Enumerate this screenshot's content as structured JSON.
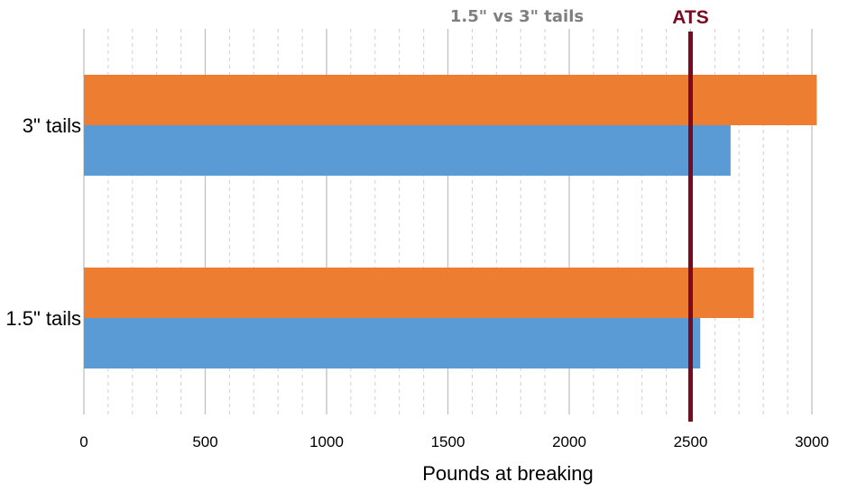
{
  "chart_data": {
    "type": "bar",
    "orientation": "horizontal",
    "title": "1.5\" vs 3\" tails",
    "xlabel": "Pounds at breaking",
    "ylabel": "",
    "categories": [
      "3\" tails",
      "1.5\" tails"
    ],
    "series": [
      {
        "values": [
          3020,
          2760
        ],
        "color": "#ED7D31"
      },
      {
        "values": [
          2665,
          2540
        ],
        "color": "#5B9BD5"
      }
    ],
    "xlim": [
      0,
      3000
    ],
    "x_ticks": [
      0,
      500,
      1000,
      1500,
      2000,
      2500,
      3000
    ],
    "minor_gridlines_per_major": 5,
    "grid": true,
    "legend": "none",
    "reference_line": {
      "label": "ATS",
      "value": 2500,
      "color": "#7B0A20"
    }
  }
}
